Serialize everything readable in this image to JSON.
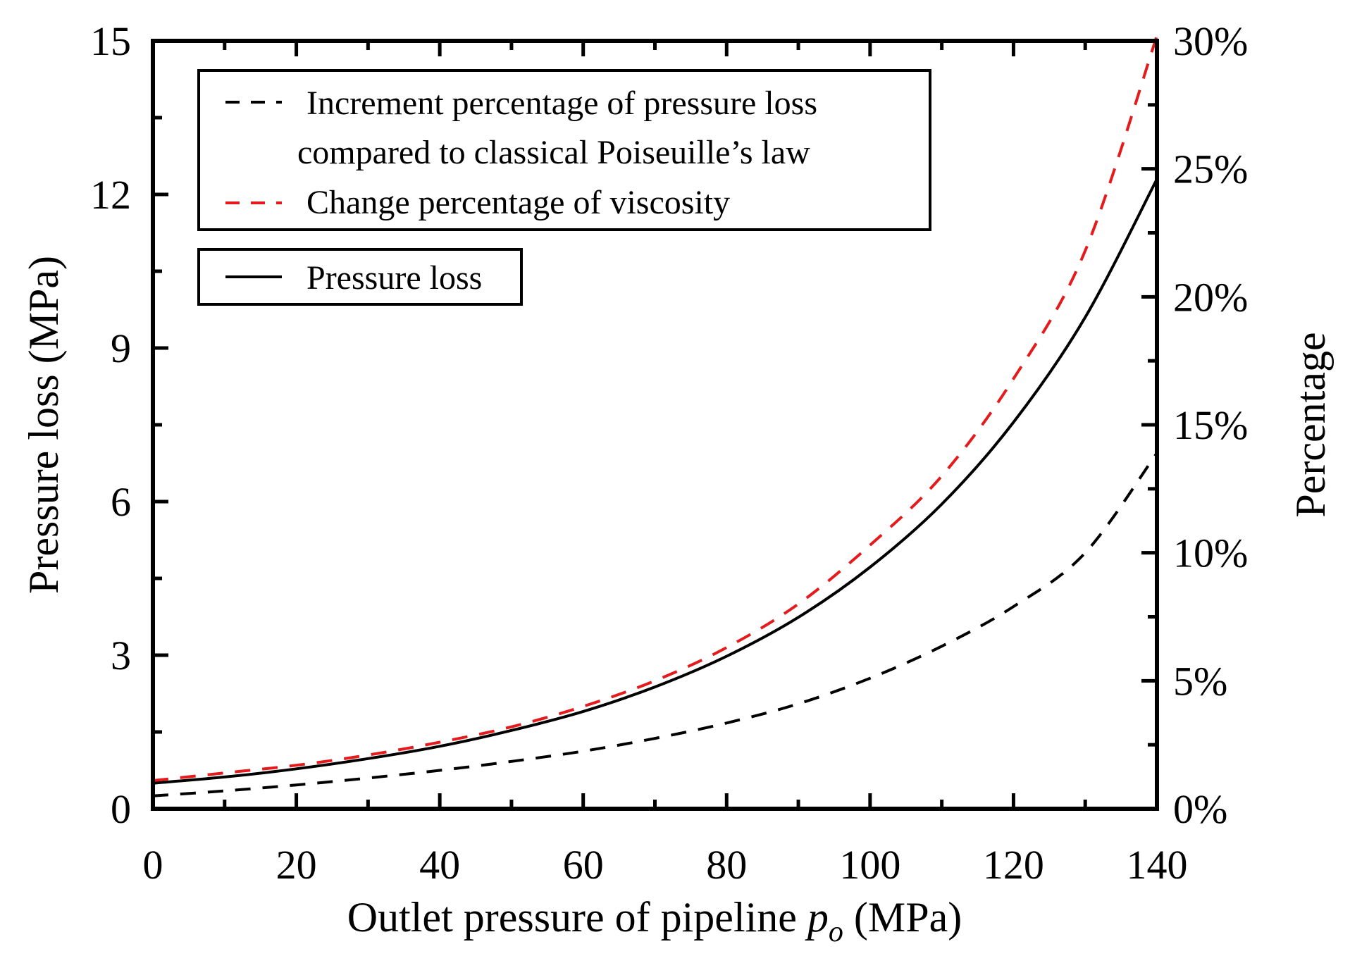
{
  "chart_data": {
    "type": "line",
    "title": "",
    "xlabel": "Outlet pressure of pipeline",
    "xlabel_symbol": "p",
    "xlabel_subscript": "o",
    "xlabel_unit": "(MPa)",
    "ylabel_left": "Pressure loss (MPa)",
    "ylabel_right": "Percentage",
    "xlim": [
      0,
      140
    ],
    "ylim_left": [
      0,
      15
    ],
    "ylim_right": [
      0,
      30
    ],
    "x_ticks": [
      0,
      20,
      40,
      60,
      80,
      100,
      120,
      140
    ],
    "x_tick_labels": [
      "0",
      "20",
      "40",
      "60",
      "80",
      "100",
      "120",
      "140"
    ],
    "y_left_ticks": [
      0,
      3,
      6,
      9,
      12,
      15
    ],
    "y_left_tick_labels": [
      "0",
      "3",
      "6",
      "9",
      "12",
      "15"
    ],
    "y_right_ticks": [
      0,
      5,
      10,
      15,
      20,
      25,
      30
    ],
    "y_right_tick_labels": [
      "0%",
      "5%",
      "10%",
      "15%",
      "20%",
      "25%",
      "30%"
    ],
    "x": [
      0,
      10,
      20,
      30,
      40,
      50,
      60,
      70,
      80,
      90,
      100,
      110,
      120,
      130,
      140
    ],
    "series": [
      {
        "name": "Pressure loss",
        "axis": "left",
        "style": "solid",
        "color": "#000000",
        "values": [
          0.5,
          0.62,
          0.78,
          0.98,
          1.22,
          1.53,
          1.9,
          2.38,
          2.98,
          3.74,
          4.72,
          5.95,
          7.55,
          9.6,
          12.3
        ]
      },
      {
        "name": "Increment percentage of pressure loss compared to classical Poiseuille's law",
        "axis": "right",
        "style": "dashed",
        "color": "#000000",
        "values": [
          0.5,
          0.7,
          0.93,
          1.2,
          1.5,
          1.85,
          2.25,
          2.75,
          3.35,
          4.1,
          5.1,
          6.35,
          7.9,
          10.0,
          13.9
        ]
      },
      {
        "name": "Change percentage of viscosity",
        "axis": "right",
        "style": "dashed",
        "color": "#e41a1c",
        "values": [
          1.1,
          1.4,
          1.7,
          2.1,
          2.6,
          3.2,
          4.0,
          5.0,
          6.3,
          8.0,
          10.3,
          13.0,
          16.8,
          21.8,
          30.2
        ]
      }
    ],
    "legend": {
      "placement": "top-left",
      "box1": [
        "Increment percentage of pressure loss",
        "compared to classical Poiseuille’s law",
        "Change percentage of viscosity"
      ],
      "box2": [
        "Pressure loss"
      ]
    }
  }
}
